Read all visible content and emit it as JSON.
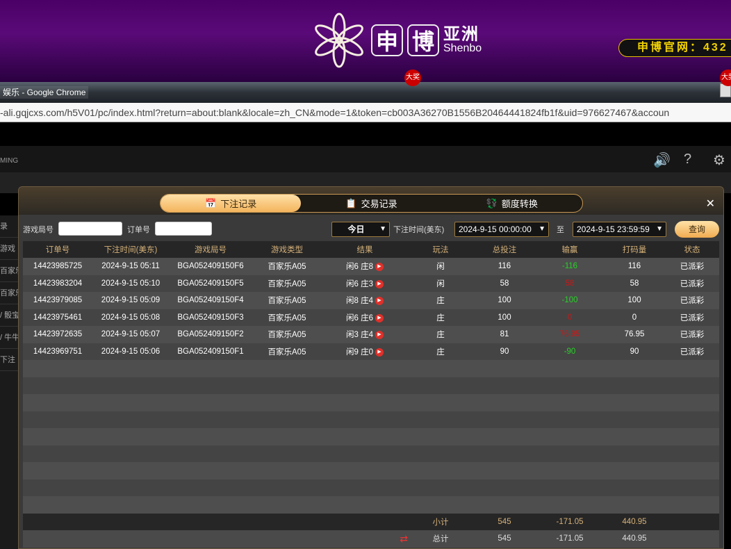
{
  "banner": {
    "logo_char1": "申",
    "logo_char2": "博",
    "logo_cn": "亚洲",
    "logo_en": "Shenbo",
    "site_text": "申博官网：432",
    "badge": "大奖"
  },
  "browser": {
    "title": "娱乐 - Google Chrome",
    "url": "-ali.gqjcxs.com/h5V01/pc/index.html?return=about:blank&locale=zh_CN&mode=1&token=cb003A36270B1556B20464441824fb1f&uid=976627467&accoun"
  },
  "game": {
    "brand_partial": "MING",
    "side_items": [
      "录",
      "游戏",
      "百家乐",
      "百家乐",
      "/ 骰宝",
      "/ 牛牛",
      "下注"
    ]
  },
  "modal": {
    "tabs": [
      {
        "label": "下注记录",
        "icon": "calendar-icon",
        "active": true
      },
      {
        "label": "交易记录",
        "icon": "clipboard-icon"
      },
      {
        "label": "额度转换",
        "icon": "transfer-icon"
      }
    ],
    "filter": {
      "game_no_label": "游戏局号",
      "game_no_value": "",
      "order_no_label": "订单号",
      "order_no_value": "",
      "period": "今日",
      "time_label": "下注时间(美东)",
      "start": "2024-9-15 00:00:00",
      "to_label": "至",
      "end": "2024-9-15 23:59:59",
      "query": "查询"
    },
    "columns": [
      "订单号",
      "下注时间(美东)",
      "游戏局号",
      "游戏类型",
      "结果",
      "玩法",
      "总投注",
      "输赢",
      "打码量",
      "状态"
    ],
    "rows": [
      {
        "order": "14423985725",
        "time": "2024-9-15 05:11",
        "game_no": "BGA052409150F6",
        "type": "百家乐A05",
        "result": "闲6 庄8",
        "play": "闲",
        "bet": "116",
        "win": "-116",
        "win_color": "green",
        "valid": "116",
        "status": "已派彩"
      },
      {
        "order": "14423983204",
        "time": "2024-9-15 05:10",
        "game_no": "BGA052409150F5",
        "type": "百家乐A05",
        "result": "闲6 庄3",
        "play": "闲",
        "bet": "58",
        "win": "58",
        "win_color": "red",
        "valid": "58",
        "status": "已派彩"
      },
      {
        "order": "14423979085",
        "time": "2024-9-15 05:09",
        "game_no": "BGA052409150F4",
        "type": "百家乐A05",
        "result": "闲8 庄4",
        "play": "庄",
        "bet": "100",
        "win": "-100",
        "win_color": "green",
        "valid": "100",
        "status": "已派彩"
      },
      {
        "order": "14423975461",
        "time": "2024-9-15 05:08",
        "game_no": "BGA052409150F3",
        "type": "百家乐A05",
        "result": "闲6 庄6",
        "play": "庄",
        "bet": "100",
        "win": "0",
        "win_color": "red",
        "valid": "0",
        "status": "已派彩"
      },
      {
        "order": "14423972635",
        "time": "2024-9-15 05:07",
        "game_no": "BGA052409150F2",
        "type": "百家乐A05",
        "result": "闲3 庄4",
        "play": "庄",
        "bet": "81",
        "win": "76.95",
        "win_color": "red",
        "valid": "76.95",
        "status": "已派彩"
      },
      {
        "order": "14423969751",
        "time": "2024-9-15 05:06",
        "game_no": "BGA052409150F1",
        "type": "百家乐A05",
        "result": "闲9 庄0",
        "play": "庄",
        "bet": "90",
        "win": "-90",
        "win_color": "green",
        "valid": "90",
        "status": "已派彩"
      }
    ],
    "subtotal": {
      "label": "小计",
      "bet": "545",
      "win": "-171.05",
      "valid": "440.95"
    },
    "total": {
      "label": "总计",
      "bet": "545",
      "win": "-171.05",
      "valid": "440.95"
    }
  },
  "colors": {
    "accent": "#f3b45c",
    "win_green": "#28d228",
    "loss_red": "#c81818",
    "banner": "#4a0066"
  }
}
